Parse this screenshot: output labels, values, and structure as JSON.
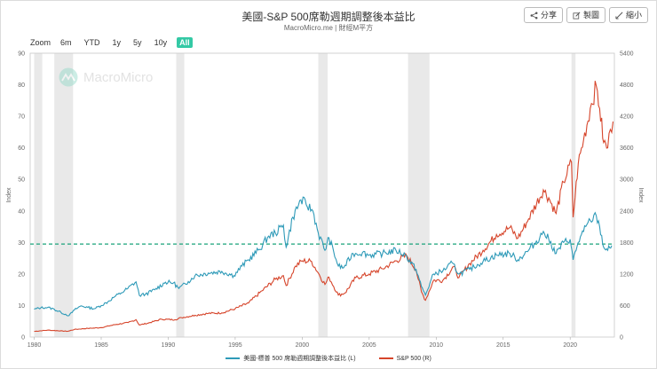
{
  "header": {
    "title": "美國-S&P 500席勒週期調整後本益比",
    "subtitle": "MacroMicro.me | 財經M平方"
  },
  "toolbar": {
    "share": "分享",
    "copy": "製圖",
    "shrink": "縮小"
  },
  "zoom": {
    "label": "Zoom",
    "options": [
      "6m",
      "YTD",
      "1y",
      "5y",
      "10y",
      "All"
    ],
    "active": "All"
  },
  "watermark": "MacroMicro",
  "colors": {
    "cape": "#2e9ab8",
    "sp500": "#d6452b",
    "reference": "#1aa37a",
    "shading": "#e9e9e9"
  },
  "chart_data": {
    "type": "line",
    "title": "美國-S&P 500席勒週期調整後本益比",
    "xlabel": "",
    "ylabel_left": "Index",
    "ylabel_right": "Index",
    "xlim": [
      1979.7,
      2023.3
    ],
    "ylim_left": [
      0,
      90
    ],
    "ylim_right": [
      0,
      5400
    ],
    "x_ticks": [
      1980,
      1985,
      1990,
      1995,
      2000,
      2005,
      2010,
      2015,
      2020
    ],
    "y_ticks_left": [
      0,
      10,
      20,
      30,
      40,
      50,
      60,
      70,
      80,
      90
    ],
    "y_ticks_right": [
      0,
      600,
      1200,
      1800,
      2400,
      3000,
      3600,
      4200,
      4800,
      5400
    ],
    "reference_line": {
      "axis": "left",
      "value": 29.5,
      "style": "dashed"
    },
    "recessions": [
      [
        1980.0,
        1980.6
      ],
      [
        1981.5,
        1982.9
      ],
      [
        1990.6,
        1991.2
      ],
      [
        2001.2,
        2001.9
      ],
      [
        2007.9,
        2009.5
      ],
      [
        2020.1,
        2020.4
      ]
    ],
    "series": [
      {
        "name": "美國-標普 500 席勒週期調整後本益比 (L)",
        "axis": "left",
        "points": [
          [
            1980.0,
            8.8
          ],
          [
            1980.5,
            9.3
          ],
          [
            1981.0,
            9.4
          ],
          [
            1981.5,
            8.8
          ],
          [
            1982.0,
            7.8
          ],
          [
            1982.6,
            6.8
          ],
          [
            1983.0,
            8.6
          ],
          [
            1983.5,
            9.9
          ],
          [
            1984.0,
            9.4
          ],
          [
            1984.5,
            9.0
          ],
          [
            1985.0,
            10.0
          ],
          [
            1985.5,
            11.2
          ],
          [
            1986.0,
            12.8
          ],
          [
            1986.5,
            14.0
          ],
          [
            1987.0,
            15.5
          ],
          [
            1987.6,
            17.5
          ],
          [
            1987.85,
            13.2
          ],
          [
            1988.3,
            13.6
          ],
          [
            1989.0,
            15.0
          ],
          [
            1989.8,
            17.4
          ],
          [
            1990.4,
            17.2
          ],
          [
            1990.8,
            15.4
          ],
          [
            1991.5,
            17.6
          ],
          [
            1992.0,
            19.5
          ],
          [
            1993.0,
            20.3
          ],
          [
            1994.0,
            20.8
          ],
          [
            1994.9,
            19.5
          ],
          [
            1995.5,
            22.5
          ],
          [
            1996.0,
            24.5
          ],
          [
            1996.8,
            27.8
          ],
          [
            1997.5,
            32.0
          ],
          [
            1998.0,
            33.0
          ],
          [
            1998.6,
            35.5
          ],
          [
            1998.8,
            28.5
          ],
          [
            1999.3,
            38.0
          ],
          [
            1999.9,
            43.5
          ],
          [
            2000.3,
            42.0
          ],
          [
            2000.8,
            40.0
          ],
          [
            2001.2,
            33.0
          ],
          [
            2001.7,
            27.5
          ],
          [
            2002.0,
            31.5
          ],
          [
            2002.7,
            22.5
          ],
          [
            2003.1,
            22.0
          ],
          [
            2003.8,
            26.5
          ],
          [
            2004.5,
            26.8
          ],
          [
            2005.0,
            26.0
          ],
          [
            2006.0,
            26.5
          ],
          [
            2007.0,
            27.5
          ],
          [
            2007.7,
            26.0
          ],
          [
            2008.5,
            21.5
          ],
          [
            2008.9,
            16.0
          ],
          [
            2009.2,
            13.3
          ],
          [
            2009.8,
            20.0
          ],
          [
            2010.5,
            21.0
          ],
          [
            2011.2,
            23.5
          ],
          [
            2011.7,
            20.0
          ],
          [
            2012.5,
            21.5
          ],
          [
            2013.5,
            24.0
          ],
          [
            2014.5,
            26.0
          ],
          [
            2015.5,
            26.5
          ],
          [
            2016.1,
            24.5
          ],
          [
            2016.9,
            27.5
          ],
          [
            2017.9,
            32.5
          ],
          [
            2018.0,
            33.5
          ],
          [
            2018.4,
            31.0
          ],
          [
            2018.95,
            26.5
          ],
          [
            2019.5,
            30.0
          ],
          [
            2020.0,
            31.0
          ],
          [
            2020.22,
            24.5
          ],
          [
            2020.6,
            30.0
          ],
          [
            2021.0,
            33.5
          ],
          [
            2021.5,
            37.0
          ],
          [
            2021.95,
            38.5
          ],
          [
            2022.2,
            35.0
          ],
          [
            2022.5,
            28.5
          ],
          [
            2022.8,
            27.5
          ],
          [
            2023.1,
            29.0
          ]
        ]
      },
      {
        "name": "S&P 500 (R)",
        "axis": "right",
        "points": [
          [
            1980.0,
            108
          ],
          [
            1981.0,
            132
          ],
          [
            1982.5,
            110
          ],
          [
            1983.0,
            145
          ],
          [
            1984.0,
            165
          ],
          [
            1985.0,
            180
          ],
          [
            1986.0,
            235
          ],
          [
            1987.0,
            275
          ],
          [
            1987.6,
            330
          ],
          [
            1987.85,
            230
          ],
          [
            1988.5,
            265
          ],
          [
            1989.5,
            340
          ],
          [
            1990.5,
            330
          ],
          [
            1991.0,
            370
          ],
          [
            1992.0,
            415
          ],
          [
            1993.0,
            450
          ],
          [
            1994.0,
            460
          ],
          [
            1995.0,
            540
          ],
          [
            1996.0,
            650
          ],
          [
            1997.0,
            880
          ],
          [
            1998.0,
            1100
          ],
          [
            1998.6,
            1170
          ],
          [
            1998.8,
            980
          ],
          [
            1999.5,
            1350
          ],
          [
            2000.0,
            1450
          ],
          [
            2000.7,
            1440
          ],
          [
            2001.2,
            1220
          ],
          [
            2001.7,
            1000
          ],
          [
            2002.0,
            1140
          ],
          [
            2002.7,
            800
          ],
          [
            2003.2,
            840
          ],
          [
            2004.0,
            1130
          ],
          [
            2005.0,
            1200
          ],
          [
            2006.0,
            1300
          ],
          [
            2007.0,
            1450
          ],
          [
            2007.8,
            1550
          ],
          [
            2008.5,
            1280
          ],
          [
            2008.9,
            860
          ],
          [
            2009.2,
            700
          ],
          [
            2009.8,
            1080
          ],
          [
            2010.5,
            1080
          ],
          [
            2011.3,
            1340
          ],
          [
            2011.7,
            1130
          ],
          [
            2012.5,
            1400
          ],
          [
            2013.5,
            1650
          ],
          [
            2014.5,
            1950
          ],
          [
            2015.5,
            2080
          ],
          [
            2016.1,
            1880
          ],
          [
            2016.9,
            2250
          ],
          [
            2018.0,
            2800
          ],
          [
            2018.4,
            2650
          ],
          [
            2018.95,
            2350
          ],
          [
            2019.5,
            2950
          ],
          [
            2020.1,
            3330
          ],
          [
            2020.22,
            2280
          ],
          [
            2020.6,
            3300
          ],
          [
            2021.0,
            3750
          ],
          [
            2021.5,
            4350
          ],
          [
            2021.95,
            4780
          ],
          [
            2022.2,
            4350
          ],
          [
            2022.5,
            3700
          ],
          [
            2022.8,
            3600
          ],
          [
            2023.0,
            3950
          ],
          [
            2023.2,
            4100
          ]
        ]
      }
    ]
  },
  "legend": [
    {
      "label": "美國-標普 500 席勒週期調整後本益比 (L)",
      "color": "#2e9ab8"
    },
    {
      "label": "S&P 500 (R)",
      "color": "#d6452b"
    }
  ]
}
